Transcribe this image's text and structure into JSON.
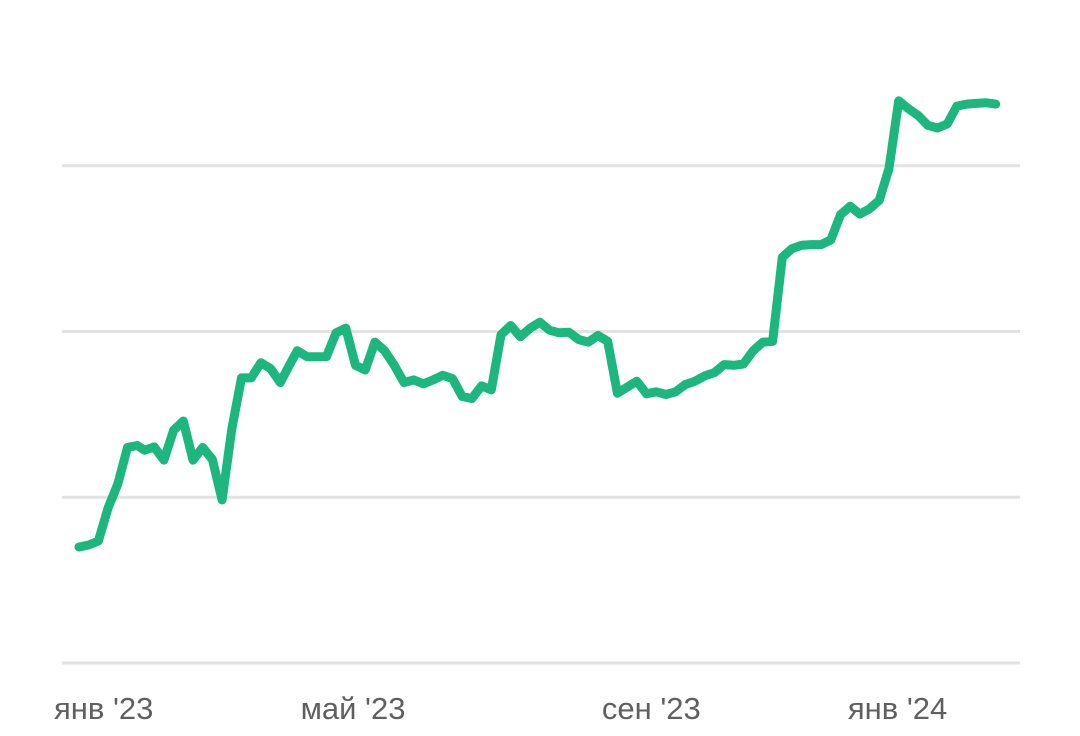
{
  "chart_data": {
    "type": "line",
    "title": "",
    "xlabel": "",
    "ylabel": "",
    "grid": true,
    "legend": "none",
    "y_ticks_shown": false,
    "line_color": "#1db67e",
    "grid_color": "#e2e2e2",
    "label_color": "#5f5f5f",
    "xlim": [
      "2023-01-01",
      "2024-01-31"
    ],
    "ylim": [
      0,
      100
    ],
    "gridlines_y": [
      0,
      25,
      50,
      75
    ],
    "x_ticks": [
      {
        "date": "2023-01-01",
        "label": "янв '23"
      },
      {
        "date": "2023-05-01",
        "label": "май '23"
      },
      {
        "date": "2023-09-01",
        "label": "сен '23"
      },
      {
        "date": "2024-01-01",
        "label": "янв '24"
      }
    ],
    "series": [
      {
        "x": [
          "2023-01-08",
          "2023-01-12",
          "2023-01-16",
          "2023-01-20",
          "2023-01-24",
          "2023-01-28",
          "2023-02-01",
          "2023-02-04",
          "2023-02-08",
          "2023-02-12",
          "2023-02-16",
          "2023-02-20",
          "2023-02-24",
          "2023-02-28",
          "2023-03-04",
          "2023-03-08",
          "2023-03-12",
          "2023-03-16",
          "2023-03-20",
          "2023-03-24",
          "2023-03-28",
          "2023-04-01",
          "2023-04-04",
          "2023-04-08",
          "2023-04-12",
          "2023-04-16",
          "2023-04-20",
          "2023-04-24",
          "2023-04-28",
          "2023-05-02",
          "2023-05-06",
          "2023-05-10",
          "2023-05-14",
          "2023-05-18",
          "2023-05-22",
          "2023-05-26",
          "2023-05-30",
          "2023-06-03",
          "2023-06-07",
          "2023-06-11",
          "2023-06-15",
          "2023-06-19",
          "2023-06-23",
          "2023-06-27",
          "2023-07-01",
          "2023-07-05",
          "2023-07-09",
          "2023-07-13",
          "2023-07-17",
          "2023-07-21",
          "2023-07-25",
          "2023-07-29",
          "2023-08-02",
          "2023-08-06",
          "2023-08-10",
          "2023-08-14",
          "2023-08-18",
          "2023-08-22",
          "2023-08-26",
          "2023-08-30",
          "2023-09-03",
          "2023-09-07",
          "2023-09-11",
          "2023-09-15",
          "2023-09-19",
          "2023-09-23",
          "2023-09-27",
          "2023-10-01",
          "2023-10-05",
          "2023-10-09",
          "2023-10-13",
          "2023-10-17",
          "2023-10-21",
          "2023-10-25",
          "2023-10-29",
          "2023-11-02",
          "2023-11-06",
          "2023-11-10",
          "2023-11-14",
          "2023-11-18",
          "2023-11-22",
          "2023-11-26",
          "2023-11-30",
          "2023-12-04",
          "2023-12-08",
          "2023-12-12",
          "2023-12-16",
          "2023-12-20",
          "2023-12-24",
          "2023-12-28",
          "2024-01-01",
          "2024-01-05",
          "2024-01-09",
          "2024-01-13",
          "2024-01-17",
          "2024-01-21"
        ],
        "values": [
          17.5,
          17.8,
          18.4,
          23.4,
          27.0,
          32.5,
          32.8,
          32.1,
          32.6,
          30.6,
          35.1,
          36.5,
          30.6,
          32.5,
          30.7,
          24.6,
          35.3,
          43.0,
          43.0,
          45.3,
          44.4,
          42.3,
          44.4,
          47.1,
          46.2,
          46.2,
          46.2,
          49.8,
          50.5,
          44.9,
          44.2,
          48.4,
          47.1,
          44.9,
          42.3,
          42.7,
          42.1,
          42.7,
          43.4,
          42.9,
          40.2,
          39.9,
          41.8,
          41.2,
          49.5,
          50.9,
          49.2,
          50.5,
          51.4,
          50.2,
          49.8,
          49.9,
          48.8,
          48.4,
          49.4,
          48.5,
          40.7,
          41.6,
          42.5,
          40.6,
          40.9,
          40.5,
          40.9,
          42.0,
          42.5,
          43.3,
          43.8,
          45.0,
          44.9,
          45.1,
          47.1,
          48.4,
          48.5,
          61.2,
          62.5,
          63.0,
          63.1,
          63.1,
          63.8,
          67.6,
          68.9,
          67.7,
          68.5,
          69.8,
          74.6,
          84.8,
          83.6,
          82.6,
          81.1,
          80.7,
          81.3,
          84.0,
          84.3,
          84.4,
          84.5,
          84.3
        ]
      }
    ]
  }
}
